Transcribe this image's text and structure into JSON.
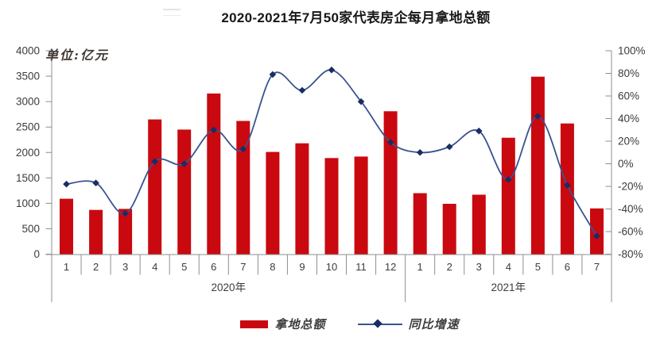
{
  "title": "2020-2021年7月50家代表房企每月拿地总额",
  "chart_data": {
    "type": "bar+line",
    "title": "2020-2021年7月50家代表房企每月拿地总额",
    "categories": [
      "1",
      "2",
      "3",
      "4",
      "5",
      "6",
      "7",
      "8",
      "9",
      "10",
      "11",
      "12",
      "1",
      "2",
      "3",
      "4",
      "5",
      "6",
      "7"
    ],
    "year_groups": [
      {
        "label": "2020年",
        "count": 12
      },
      {
        "label": "2021年",
        "count": 7
      }
    ],
    "series": [
      {
        "name": "拿地总额",
        "type": "bar",
        "axis": "left",
        "unit": "亿元",
        "values": [
          1090,
          870,
          890,
          2650,
          2450,
          3160,
          2620,
          2010,
          2180,
          1890,
          1920,
          2810,
          1200,
          990,
          1170,
          2290,
          3490,
          2570,
          900
        ]
      },
      {
        "name": "同比增速",
        "type": "line",
        "axis": "right",
        "unit": "%",
        "values": [
          -18,
          -17,
          -44,
          2,
          0,
          30,
          13,
          79,
          65,
          83,
          55,
          19,
          10,
          15,
          29,
          -14,
          42,
          -19,
          -64
        ]
      }
    ],
    "left_axis": {
      "title": "单位:亿元",
      "min": 0,
      "max": 4000,
      "step": 500,
      "tick_labels": [
        "0",
        "500",
        "1000",
        "1500",
        "2000",
        "2500",
        "3000",
        "3500",
        "4000"
      ]
    },
    "right_axis": {
      "min": -80,
      "max": 100,
      "step": 20,
      "tick_labels": [
        "-80%",
        "-60%",
        "-40%",
        "-20%",
        "0%",
        "20%",
        "40%",
        "60%",
        "80%",
        "100%"
      ]
    },
    "grid": false,
    "legend_position": "bottom"
  },
  "colors": {
    "bar": "#C9090F",
    "line": "#3A5390",
    "marker": "#1A2C63",
    "axis": "#8f8f8f",
    "tick_text": "#3c3c3c",
    "title_text": "#171717"
  }
}
